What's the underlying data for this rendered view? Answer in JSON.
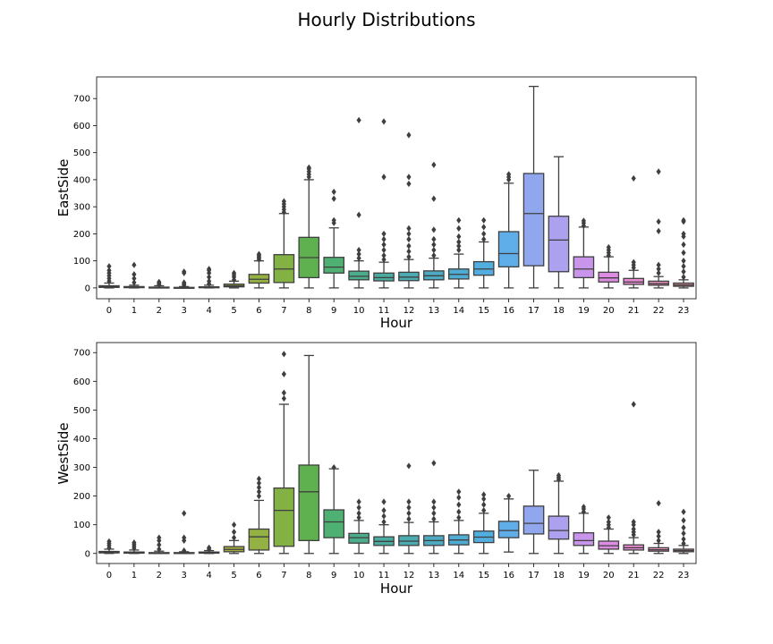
{
  "chart_data": [
    {
      "type": "box",
      "title": "Hourly Distributions",
      "xlabel": "Hour",
      "ylabel": "EastSide",
      "ylim": [
        -40,
        780
      ],
      "yticks": [
        0,
        100,
        200,
        300,
        400,
        500,
        600,
        700
      ],
      "categories": [
        "0",
        "1",
        "2",
        "3",
        "4",
        "5",
        "6",
        "7",
        "8",
        "9",
        "10",
        "11",
        "12",
        "13",
        "14",
        "15",
        "16",
        "17",
        "18",
        "19",
        "20",
        "21",
        "22",
        "23"
      ],
      "colors": [
        "#e88f8f",
        "#e5967a",
        "#d99a5f",
        "#c7a14a",
        "#b4a742",
        "#a3ac42",
        "#94b143",
        "#83b144",
        "#5fb04f",
        "#4fb074",
        "#4cad8c",
        "#4aaca0",
        "#4babb1",
        "#4dabc1",
        "#4facd2",
        "#53aee0",
        "#5fade9",
        "#90a7ed",
        "#aca1ee",
        "#c895ea",
        "#de8ce3",
        "#e98cd4",
        "#eb8fbf",
        "#e996a6"
      ],
      "boxes": [
        {
          "whislo": 0,
          "q1": 2,
          "med": 4,
          "q3": 8,
          "whishi": 18,
          "fliers": [
            25,
            35,
            45,
            55,
            65,
            80
          ]
        },
        {
          "whislo": 0,
          "q1": 1,
          "med": 3,
          "q3": 5,
          "whishi": 10,
          "fliers": [
            20,
            35,
            50,
            85
          ]
        },
        {
          "whislo": 0,
          "q1": 0,
          "med": 1,
          "q3": 3,
          "whishi": 8,
          "fliers": [
            12,
            17,
            22
          ]
        },
        {
          "whislo": 0,
          "q1": 0,
          "med": 1,
          "q3": 2,
          "whishi": 5,
          "fliers": [
            10,
            15,
            20,
            55,
            60
          ]
        },
        {
          "whislo": 0,
          "q1": 1,
          "med": 2,
          "q3": 4,
          "whishi": 10,
          "fliers": [
            15,
            25,
            40,
            55,
            65,
            70
          ]
        },
        {
          "whislo": 0,
          "q1": 4,
          "med": 8,
          "q3": 14,
          "whishi": 25,
          "fliers": [
            30,
            40,
            48,
            55
          ]
        },
        {
          "whislo": 0,
          "q1": 18,
          "med": 32,
          "q3": 50,
          "whishi": 100,
          "fliers": [
            105,
            110,
            115,
            120,
            125
          ]
        },
        {
          "whislo": 0,
          "q1": 20,
          "med": 70,
          "q3": 123,
          "whishi": 275,
          "fliers": [
            280,
            290,
            300,
            310,
            320
          ]
        },
        {
          "whislo": 0,
          "q1": 38,
          "med": 112,
          "q3": 187,
          "whishi": 400,
          "fliers": [
            410,
            420,
            430,
            440,
            445
          ]
        },
        {
          "whislo": 0,
          "q1": 55,
          "med": 77,
          "q3": 113,
          "whishi": 222,
          "fliers": [
            240,
            250,
            330,
            355
          ]
        },
        {
          "whislo": 0,
          "q1": 30,
          "med": 43,
          "q3": 62,
          "whishi": 100,
          "fliers": [
            110,
            125,
            140,
            270,
            620
          ]
        },
        {
          "whislo": 0,
          "q1": 26,
          "med": 38,
          "q3": 55,
          "whishi": 95,
          "fliers": [
            105,
            120,
            140,
            160,
            180,
            200,
            410,
            615
          ]
        },
        {
          "whislo": 0,
          "q1": 27,
          "med": 40,
          "q3": 58,
          "whishi": 105,
          "fliers": [
            115,
            135,
            155,
            180,
            200,
            220,
            385,
            410,
            565
          ]
        },
        {
          "whislo": 0,
          "q1": 30,
          "med": 45,
          "q3": 63,
          "whishi": 110,
          "fliers": [
            120,
            140,
            160,
            180,
            215,
            330,
            455
          ]
        },
        {
          "whislo": 0,
          "q1": 33,
          "med": 50,
          "q3": 70,
          "whishi": 125,
          "fliers": [
            140,
            155,
            170,
            190,
            220,
            250
          ]
        },
        {
          "whislo": 0,
          "q1": 47,
          "med": 70,
          "q3": 97,
          "whishi": 170,
          "fliers": [
            180,
            200,
            225,
            250
          ]
        },
        {
          "whislo": 0,
          "q1": 78,
          "med": 127,
          "q3": 208,
          "whishi": 387,
          "fliers": [
            400,
            410,
            420
          ]
        },
        {
          "whislo": 0,
          "q1": 82,
          "med": 275,
          "q3": 423,
          "whishi": 745,
          "fliers": []
        },
        {
          "whislo": 0,
          "q1": 60,
          "med": 177,
          "q3": 265,
          "whishi": 485,
          "fliers": []
        },
        {
          "whislo": 0,
          "q1": 38,
          "med": 70,
          "q3": 115,
          "whishi": 225,
          "fliers": [
            230,
            240,
            248
          ]
        },
        {
          "whislo": 0,
          "q1": 22,
          "med": 37,
          "q3": 58,
          "whishi": 115,
          "fliers": [
            120,
            130,
            140,
            150
          ]
        },
        {
          "whislo": 0,
          "q1": 13,
          "med": 22,
          "q3": 35,
          "whishi": 65,
          "fliers": [
            75,
            85,
            95,
            405
          ]
        },
        {
          "whislo": 0,
          "q1": 10,
          "med": 16,
          "q3": 25,
          "whishi": 42,
          "fliers": [
            55,
            70,
            85,
            210,
            245,
            430
          ]
        },
        {
          "whislo": 0,
          "q1": 6,
          "med": 11,
          "q3": 18,
          "whishi": 30,
          "fliers": [
            40,
            60,
            80,
            100,
            130,
            160,
            190,
            200,
            245,
            250
          ]
        }
      ]
    },
    {
      "type": "box",
      "xlabel": "Hour",
      "ylabel": "WestSide",
      "ylim": [
        -35,
        735
      ],
      "yticks": [
        0,
        100,
        200,
        300,
        400,
        500,
        600,
        700
      ],
      "categories": [
        "0",
        "1",
        "2",
        "3",
        "4",
        "5",
        "6",
        "7",
        "8",
        "9",
        "10",
        "11",
        "12",
        "13",
        "14",
        "15",
        "16",
        "17",
        "18",
        "19",
        "20",
        "21",
        "22",
        "23"
      ],
      "boxes": [
        {
          "whislo": 0,
          "q1": 2,
          "med": 4,
          "q3": 7,
          "whishi": 15,
          "fliers": [
            20,
            28,
            35,
            42
          ]
        },
        {
          "whislo": 0,
          "q1": 1,
          "med": 3,
          "q3": 5,
          "whishi": 12,
          "fliers": [
            18,
            25,
            32,
            38
          ]
        },
        {
          "whislo": 0,
          "q1": 0,
          "med": 1,
          "q3": 3,
          "whishi": 8,
          "fliers": [
            15,
            30,
            45,
            55
          ]
        },
        {
          "whislo": 0,
          "q1": 0,
          "med": 1,
          "q3": 3,
          "whishi": 6,
          "fliers": [
            10,
            45,
            55,
            140
          ]
        },
        {
          "whislo": 0,
          "q1": 1,
          "med": 3,
          "q3": 5,
          "whishi": 10,
          "fliers": [
            15,
            20
          ]
        },
        {
          "whislo": 0,
          "q1": 6,
          "med": 14,
          "q3": 24,
          "whishi": 45,
          "fliers": [
            55,
            75,
            100
          ]
        },
        {
          "whislo": 0,
          "q1": 12,
          "med": 58,
          "q3": 85,
          "whishi": 185,
          "fliers": [
            200,
            215,
            230,
            245,
            260
          ]
        },
        {
          "whislo": 0,
          "q1": 25,
          "med": 150,
          "q3": 228,
          "whishi": 520,
          "fliers": [
            540,
            560,
            625,
            695
          ]
        },
        {
          "whislo": 0,
          "q1": 45,
          "med": 215,
          "q3": 308,
          "whishi": 690,
          "fliers": []
        },
        {
          "whislo": 0,
          "q1": 55,
          "med": 110,
          "q3": 152,
          "whishi": 295,
          "fliers": [
            300
          ]
        },
        {
          "whislo": 0,
          "q1": 36,
          "med": 55,
          "q3": 70,
          "whishi": 115,
          "fliers": [
            125,
            140,
            160,
            180
          ]
        },
        {
          "whislo": 0,
          "q1": 28,
          "med": 42,
          "q3": 58,
          "whishi": 100,
          "fliers": [
            110,
            130,
            150,
            180
          ]
        },
        {
          "whislo": 0,
          "q1": 28,
          "med": 43,
          "q3": 62,
          "whishi": 108,
          "fliers": [
            120,
            140,
            160,
            180,
            305
          ]
        },
        {
          "whislo": 0,
          "q1": 28,
          "med": 45,
          "q3": 62,
          "whishi": 110,
          "fliers": [
            120,
            140,
            160,
            180,
            315
          ]
        },
        {
          "whislo": 0,
          "q1": 30,
          "med": 47,
          "q3": 65,
          "whishi": 115,
          "fliers": [
            125,
            145,
            170,
            195,
            215
          ]
        },
        {
          "whislo": 0,
          "q1": 38,
          "med": 57,
          "q3": 78,
          "whishi": 140,
          "fliers": [
            150,
            170,
            190,
            205
          ]
        },
        {
          "whislo": 5,
          "q1": 55,
          "med": 80,
          "q3": 112,
          "whishi": 190,
          "fliers": [
            200
          ]
        },
        {
          "whislo": 0,
          "q1": 68,
          "med": 105,
          "q3": 165,
          "whishi": 290,
          "fliers": []
        },
        {
          "whislo": 0,
          "q1": 50,
          "med": 80,
          "q3": 130,
          "whishi": 252,
          "fliers": [
            258,
            265,
            272
          ]
        },
        {
          "whislo": 0,
          "q1": 28,
          "med": 45,
          "q3": 72,
          "whishi": 140,
          "fliers": [
            145,
            155,
            162
          ]
        },
        {
          "whislo": 0,
          "q1": 15,
          "med": 27,
          "q3": 43,
          "whishi": 85,
          "fliers": [
            90,
            100,
            110,
            125
          ]
        },
        {
          "whislo": 0,
          "q1": 12,
          "med": 20,
          "q3": 30,
          "whishi": 55,
          "fliers": [
            65,
            75,
            85,
            100,
            110,
            520
          ]
        },
        {
          "whislo": 0,
          "q1": 8,
          "med": 13,
          "q3": 20,
          "whishi": 35,
          "fliers": [
            45,
            60,
            75,
            175
          ]
        },
        {
          "whislo": 0,
          "q1": 6,
          "med": 10,
          "q3": 15,
          "whishi": 28,
          "fliers": [
            35,
            50,
            70,
            90,
            115,
            145
          ]
        }
      ]
    }
  ]
}
